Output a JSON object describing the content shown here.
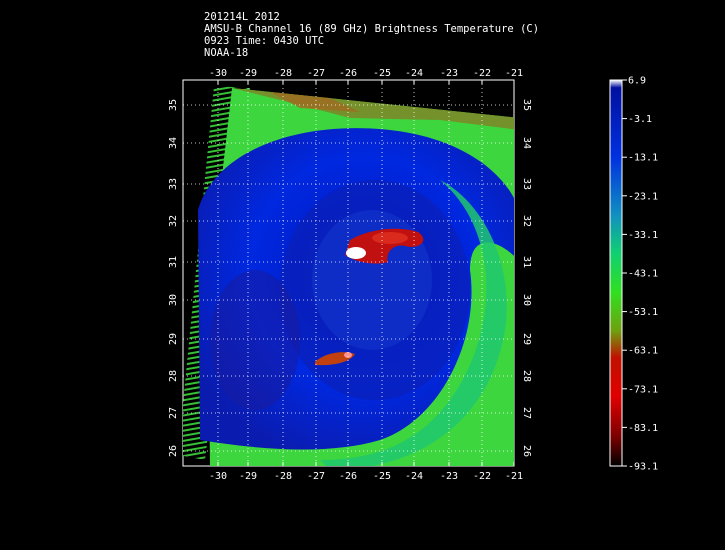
{
  "header": {
    "line1": "201214L 2012",
    "line2": "AMSU-B Channel 16 (89 GHz) Brightness Temperature (C)",
    "line3": "0923 Time: 0430 UTC",
    "line4": "NOAA-18"
  },
  "map": {
    "lon_ticks": [
      "-30",
      "-29",
      "-28",
      "-27",
      "-26",
      "-25",
      "-24",
      "-23",
      "-22",
      "-21"
    ],
    "lat_ticks": [
      "35",
      "34",
      "33",
      "32",
      "31",
      "30",
      "29",
      "28",
      "27",
      "26"
    ],
    "grid": true
  },
  "colorbar": {
    "ticks": [
      "6.9",
      "-3.1",
      "-13.1",
      "-23.1",
      "-33.1",
      "-43.1",
      "-53.1",
      "-63.1",
      "-73.1",
      "-83.1",
      "-93.1"
    ],
    "colors": [
      "#ffffff",
      "#0010a0",
      "#0030e0",
      "#1090c0",
      "#10d070",
      "#20e020",
      "#40a010",
      "#a01000",
      "#e00000",
      "#a00000",
      "#000000"
    ]
  }
}
